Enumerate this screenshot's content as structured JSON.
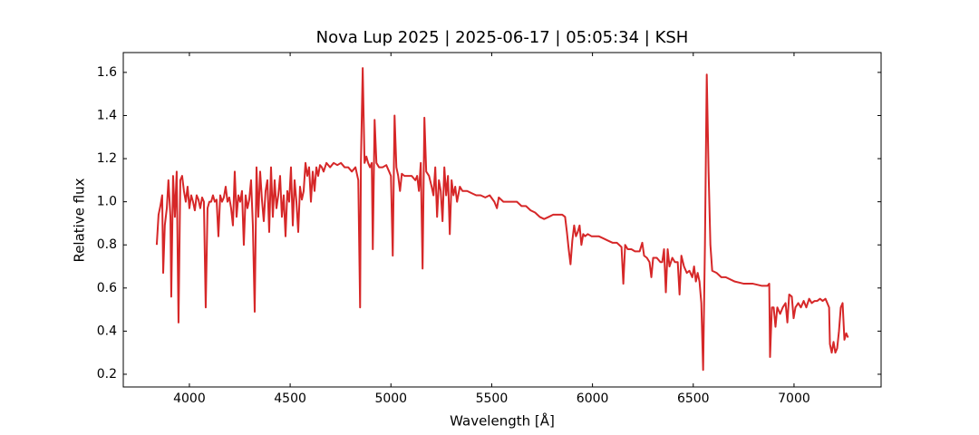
{
  "chart_data": {
    "type": "line",
    "title": "Nova Lup 2025 | 2025-06-17 | 05:05:34 | KSH",
    "xlabel": "Wavelength [Å]",
    "ylabel": "Relative flux",
    "x": [
      3838,
      3847,
      3856,
      3865,
      3870,
      3878,
      3888,
      3896,
      3906,
      3910,
      3919,
      3928,
      3937,
      3946,
      3955,
      3964,
      3973,
      3982,
      3991,
      4000,
      4009,
      4018,
      4027,
      4036,
      4045,
      4054,
      4063,
      4072,
      4081,
      4090,
      4099,
      4108,
      4117,
      4126,
      4135,
      4144,
      4153,
      4162,
      4171,
      4180,
      4189,
      4198,
      4207,
      4216,
      4225,
      4234,
      4243,
      4252,
      4261,
      4270,
      4279,
      4288,
      4297,
      4306,
      4315,
      4324,
      4333,
      4342,
      4351,
      4360,
      4369,
      4378,
      4387,
      4396,
      4405,
      4414,
      4423,
      4432,
      4441,
      4450,
      4459,
      4468,
      4477,
      4486,
      4495,
      4504,
      4513,
      4522,
      4531,
      4540,
      4549,
      4558,
      4567,
      4576,
      4585,
      4594,
      4603,
      4612,
      4621,
      4630,
      4639,
      4648,
      4657,
      4666,
      4680,
      4698,
      4716,
      4734,
      4752,
      4770,
      4788,
      4806,
      4824,
      4838,
      4847,
      4851,
      4860,
      4869,
      4878,
      4887,
      4896,
      4905,
      4910,
      4919,
      4928,
      4941,
      4959,
      4977,
      4991,
      5000,
      5009,
      5018,
      5027,
      5036,
      5045,
      5054,
      5067,
      5085,
      5103,
      5121,
      5130,
      5139,
      5148,
      5157,
      5166,
      5175,
      5189,
      5202,
      5211,
      5220,
      5229,
      5238,
      5247,
      5256,
      5265,
      5274,
      5283,
      5292,
      5301,
      5310,
      5319,
      5328,
      5342,
      5355,
      5378,
      5400,
      5423,
      5445,
      5468,
      5490,
      5513,
      5526,
      5535,
      5558,
      5580,
      5603,
      5625,
      5648,
      5670,
      5693,
      5715,
      5738,
      5760,
      5783,
      5805,
      5828,
      5850,
      5864,
      5873,
      5882,
      5891,
      5900,
      5909,
      5918,
      5927,
      5936,
      5945,
      5954,
      5963,
      5977,
      5995,
      6013,
      6031,
      6054,
      6076,
      6099,
      6121,
      6144,
      6153,
      6162,
      6175,
      6193,
      6211,
      6234,
      6247,
      6256,
      6270,
      6283,
      6292,
      6301,
      6319,
      6337,
      6346,
      6355,
      6364,
      6373,
      6382,
      6396,
      6409,
      6423,
      6432,
      6441,
      6454,
      6468,
      6481,
      6495,
      6504,
      6513,
      6522,
      6531,
      6540,
      6549,
      6558,
      6567,
      6576,
      6585,
      6594,
      6616,
      6639,
      6661,
      6706,
      6751,
      6796,
      6841,
      6868,
      6877,
      6881,
      6890,
      6899,
      6908,
      6917,
      6931,
      6944,
      6958,
      6967,
      6976,
      6989,
      6998,
      7007,
      7021,
      7034,
      7048,
      7061,
      7075,
      7088,
      7102,
      7115,
      7129,
      7142,
      7156,
      7165,
      7174,
      7178,
      7187,
      7196,
      7205,
      7214,
      7223,
      7232,
      7241,
      7250,
      7259,
      7268
    ],
    "series": [
      {
        "color": "#d62728",
        "values": [
          0.8,
          0.94,
          0.98,
          1.03,
          0.67,
          0.89,
          0.97,
          1.1,
          0.93,
          0.56,
          1.12,
          0.93,
          1.14,
          0.44,
          1.1,
          1.12,
          1.05,
          1.0,
          1.07,
          0.97,
          1.03,
          1.0,
          0.96,
          1.03,
          1.01,
          0.97,
          1.02,
          1.0,
          0.51,
          0.97,
          1.0,
          1.0,
          1.03,
          1.0,
          1.01,
          0.84,
          1.03,
          1.0,
          1.02,
          1.07,
          1.0,
          1.02,
          0.97,
          0.89,
          1.14,
          0.93,
          1.03,
          1.0,
          1.05,
          0.8,
          1.03,
          0.97,
          1.01,
          1.1,
          0.89,
          0.49,
          1.16,
          0.93,
          1.14,
          1.01,
          0.91,
          1.05,
          1.1,
          0.86,
          1.16,
          0.93,
          1.1,
          0.97,
          1.03,
          1.12,
          0.93,
          1.03,
          0.84,
          1.05,
          1.0,
          1.16,
          0.89,
          1.1,
          1.0,
          0.86,
          1.07,
          1.01,
          1.05,
          1.18,
          1.12,
          1.16,
          1.0,
          1.14,
          1.05,
          1.16,
          1.12,
          1.17,
          1.16,
          1.14,
          1.18,
          1.16,
          1.18,
          1.17,
          1.18,
          1.16,
          1.16,
          1.14,
          1.16,
          1.1,
          0.51,
          1.18,
          1.62,
          1.18,
          1.21,
          1.18,
          1.16,
          1.18,
          0.78,
          1.38,
          1.18,
          1.16,
          1.16,
          1.17,
          1.14,
          1.12,
          0.75,
          1.4,
          1.16,
          1.12,
          1.05,
          1.13,
          1.12,
          1.12,
          1.12,
          1.1,
          1.12,
          1.05,
          1.18,
          0.69,
          1.39,
          1.14,
          1.12,
          1.07,
          1.03,
          1.16,
          0.93,
          1.1,
          1.05,
          0.91,
          1.16,
          1.03,
          1.12,
          0.85,
          1.1,
          1.03,
          1.07,
          1.0,
          1.07,
          1.05,
          1.05,
          1.04,
          1.03,
          1.03,
          1.02,
          1.03,
          1.0,
          0.97,
          1.02,
          1.0,
          1.0,
          1.0,
          1.0,
          0.98,
          0.98,
          0.96,
          0.95,
          0.93,
          0.92,
          0.93,
          0.94,
          0.94,
          0.94,
          0.93,
          0.86,
          0.78,
          0.71,
          0.82,
          0.89,
          0.84,
          0.86,
          0.89,
          0.8,
          0.85,
          0.84,
          0.85,
          0.84,
          0.84,
          0.84,
          0.83,
          0.82,
          0.81,
          0.81,
          0.79,
          0.62,
          0.8,
          0.78,
          0.78,
          0.77,
          0.77,
          0.81,
          0.75,
          0.74,
          0.72,
          0.65,
          0.74,
          0.74,
          0.72,
          0.72,
          0.78,
          0.58,
          0.78,
          0.7,
          0.74,
          0.72,
          0.72,
          0.57,
          0.75,
          0.7,
          0.67,
          0.68,
          0.65,
          0.7,
          0.63,
          0.67,
          0.63,
          0.53,
          0.22,
          0.8,
          1.59,
          1.14,
          0.8,
          0.68,
          0.67,
          0.65,
          0.65,
          0.63,
          0.62,
          0.62,
          0.61,
          0.61,
          0.62,
          0.28,
          0.51,
          0.51,
          0.42,
          0.51,
          0.48,
          0.51,
          0.53,
          0.44,
          0.57,
          0.56,
          0.46,
          0.51,
          0.53,
          0.51,
          0.54,
          0.51,
          0.55,
          0.53,
          0.54,
          0.54,
          0.55,
          0.54,
          0.55,
          0.53,
          0.51,
          0.34,
          0.3,
          0.35,
          0.3,
          0.32,
          0.4,
          0.51,
          0.53,
          0.36,
          0.39,
          0.37
        ]
      }
    ],
    "xlim": [
      3672,
      7432
    ],
    "ylim": [
      0.141,
      1.692
    ],
    "xticks": [
      4000,
      4500,
      5000,
      5500,
      6000,
      6500,
      7000
    ],
    "yticks": [
      0.2,
      0.4,
      0.6,
      0.8,
      {
        "value": 1,
        "label": "1.0"
      },
      1.2,
      1.4,
      1.6
    ],
    "grid": false
  }
}
